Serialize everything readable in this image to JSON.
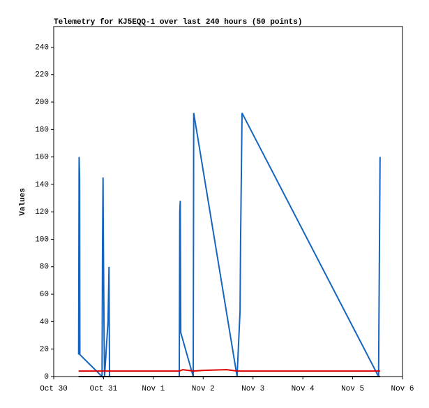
{
  "chart_data": {
    "type": "line",
    "title": "Telemetry for KJ5EQQ-1 over last 240 hours (50 points)",
    "y_label": "Values",
    "xlim": [
      0,
      7
    ],
    "ylim": [
      0,
      255
    ],
    "xticks": [
      {
        "value": 0,
        "label": "Oct 30"
      },
      {
        "value": 1,
        "label": "Oct 31"
      },
      {
        "value": 2,
        "label": "Nov 1"
      },
      {
        "value": 3,
        "label": "Nov 2"
      },
      {
        "value": 4,
        "label": "Nov 3"
      },
      {
        "value": 5,
        "label": "Nov 4"
      },
      {
        "value": 6,
        "label": "Nov 5"
      },
      {
        "value": 7,
        "label": "Nov 6"
      }
    ],
    "yticks": [
      0,
      20,
      40,
      60,
      80,
      100,
      120,
      140,
      160,
      180,
      200,
      220,
      240
    ],
    "series": [
      {
        "color": "#1565c0",
        "x": [
          0.5,
          0.51,
          0.52,
          0.525,
          0.97,
          0.98,
          0.99,
          0.995,
          1.01,
          1.02,
          1.09,
          1.11,
          1.12,
          2.52,
          2.53,
          2.54,
          2.55,
          2.8,
          2.81,
          3.68,
          3.74,
          3.75,
          3.78,
          6.52,
          6.55
        ],
        "values": [
          16,
          160,
          145,
          16,
          0,
          97,
          145,
          108,
          36,
          0,
          40,
          80,
          0,
          0,
          120,
          128,
          32,
          0,
          192,
          0,
          48,
          97,
          192,
          0,
          160
        ]
      },
      {
        "color": "#dd0000",
        "x": [
          0.5,
          2.52,
          2.59,
          2.8,
          3.01,
          3.47,
          3.68,
          6.55
        ],
        "values": [
          4,
          4,
          5,
          4,
          4.5,
          5,
          4,
          4
        ]
      },
      {
        "color": "#000000",
        "x": [
          0.5,
          6.55
        ],
        "values": [
          0,
          0
        ]
      }
    ]
  }
}
